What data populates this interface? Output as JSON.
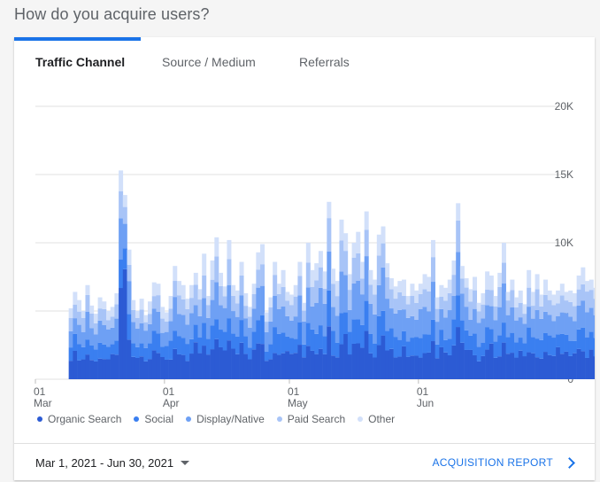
{
  "header": {
    "title": "How do you acquire users?"
  },
  "tabs": [
    {
      "label": "Traffic Channel",
      "active": true
    },
    {
      "label": "Source / Medium",
      "active": false
    },
    {
      "label": "Referrals",
      "active": false
    }
  ],
  "footer": {
    "date_range": "Mar 1, 2021 - Jun 30, 2021",
    "report_link": "ACQUISITION REPORT"
  },
  "chart_data": {
    "type": "area",
    "stacked": true,
    "xlabel": "",
    "ylabel": "",
    "ylim": [
      0,
      20000
    ],
    "y_ticks": [
      0,
      5000,
      10000,
      15000,
      20000
    ],
    "y_tick_labels": [
      "0",
      "5K",
      "10K",
      "15K",
      "20K"
    ],
    "x_ticks": [
      {
        "date": "2021-03-01",
        "day": "01",
        "month": "Mar"
      },
      {
        "date": "2021-04-01",
        "day": "01",
        "month": "Apr"
      },
      {
        "date": "2021-05-01",
        "day": "01",
        "month": "May"
      },
      {
        "date": "2021-06-01",
        "day": "01",
        "month": "Jun"
      }
    ],
    "x_start": "2021-03-01",
    "x_end": "2021-06-30",
    "data_start": "2021-03-09",
    "legend_position": "bottom",
    "grid": true,
    "series": [
      {
        "name": "Organic Search",
        "color": "#2c5bd4"
      },
      {
        "name": "Social",
        "color": "#3a7ff0"
      },
      {
        "name": "Display/Native",
        "color": "#6ea0f4"
      },
      {
        "name": "Paid Search",
        "color": "#a8c4f7"
      },
      {
        "name": "Other",
        "color": "#d2e0fa"
      }
    ],
    "totals": [
      5200,
      6400,
      5800,
      5000,
      6900,
      5400,
      4800,
      6000,
      5700,
      5000,
      5300,
      6300,
      15300,
      13500,
      9500,
      5800,
      5000,
      5900,
      4700,
      5700,
      7100,
      7000,
      5300,
      4900,
      6100,
      8300,
      7200,
      6900,
      5900,
      6900,
      7800,
      6600,
      9200,
      6100,
      8700,
      10400,
      7800,
      6800,
      10200,
      6900,
      6500,
      8600,
      6300,
      5300,
      7000,
      9300,
      9900,
      4900,
      6000,
      8600,
      7000,
      8000,
      6400,
      6200,
      6900,
      8600,
      5600,
      10000,
      8000,
      8500,
      9400,
      7900,
      13000,
      8100,
      7200,
      11700,
      10700,
      7700,
      10000,
      10800,
      8600,
      12300,
      8000,
      7300,
      10600,
      11200,
      8500,
      7400,
      6800,
      7200,
      7300,
      6100,
      7000,
      6500,
      7000,
      7700,
      7500,
      10200,
      6000,
      6900,
      6700,
      7300,
      8700,
      12900,
      8300,
      7400,
      6600,
      7500,
      5600,
      6300,
      7900,
      7600,
      6100,
      7800,
      10000,
      6400,
      7300,
      6000,
      6500,
      5500,
      8000,
      6400,
      7700,
      6200,
      7300,
      6500,
      6200,
      6500,
      7000,
      6400,
      6500,
      6300,
      7600,
      8200,
      7200,
      7300,
      6700,
      7900,
      6300,
      7000,
      6200,
      6600,
      6400,
      6300,
      6700,
      7600,
      8700,
      6900,
      6200,
      7400,
      9600,
      9700,
      7400,
      7400,
      8900,
      12000,
      6800,
      7100,
      10900,
      8800,
      15700,
      11200
    ],
    "shares": {
      "Organic Search": 0.28,
      "Social": 0.18,
      "Display/Native": 0.24,
      "Paid Search": 0.17,
      "Other": 0.13
    }
  }
}
